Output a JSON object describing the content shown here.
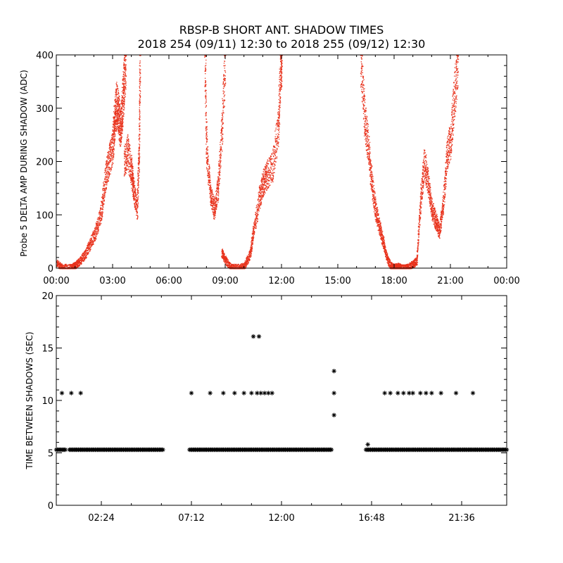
{
  "title": "RBSP-B SHORT ANT. SHADOW TIMES",
  "subtitle": "2018 254 (09/11) 12:30 to 2018 255 (09/12) 12:30",
  "colors": {
    "points_top": "#e8321c",
    "points_bottom": "#000000",
    "axes": "#000000",
    "background": "#ffffff"
  },
  "chart_data": [
    {
      "type": "scatter",
      "ylabel": "Probe 5 DELTA AMP DURING SHADOW (ADC)",
      "xlim_hours": [
        0,
        24
      ],
      "ylim": [
        0,
        400
      ],
      "x_ticks_hours": [
        0,
        3,
        6,
        9,
        12,
        15,
        18,
        21,
        24
      ],
      "x_tick_labels": [
        "00:00",
        "03:00",
        "06:00",
        "09:00",
        "12:00",
        "15:00",
        "18:00",
        "21:00",
        "00:00"
      ],
      "y_ticks": [
        0,
        100,
        200,
        300,
        400
      ],
      "y_tick_labels": [
        "0",
        "100",
        "200",
        "300",
        "400"
      ],
      "marker_color": "#e8321c",
      "series": [
        {
          "segments_hours_value": [
            [
              0.0,
              10
            ],
            [
              0.3,
              2
            ],
            [
              0.8,
              2
            ],
            [
              1.0,
              6
            ],
            [
              1.2,
              12
            ],
            [
              1.5,
              25
            ],
            [
              1.8,
              45
            ],
            [
              2.1,
              70
            ],
            [
              2.4,
              110
            ],
            [
              2.6,
              170
            ],
            [
              2.8,
              200
            ],
            [
              3.0,
              230
            ],
            [
              3.1,
              280
            ],
            [
              3.2,
              310
            ],
            [
              3.3,
              290
            ],
            [
              3.4,
              260
            ],
            [
              3.5,
              300
            ],
            [
              3.6,
              350
            ],
            [
              3.7,
              400
            ],
            [
              3.6,
              200
            ],
            [
              3.8,
              220
            ],
            [
              4.0,
              180
            ],
            [
              4.1,
              150
            ],
            [
              4.3,
              110
            ],
            [
              4.4,
              230
            ],
            [
              4.45,
              400
            ],
            [
              7.9,
              400
            ],
            [
              8.0,
              220
            ],
            [
              8.2,
              140
            ],
            [
              8.4,
              110
            ],
            [
              8.6,
              150
            ],
            [
              8.8,
              250
            ],
            [
              9.0,
              400
            ],
            [
              8.8,
              30
            ],
            [
              9.0,
              15
            ],
            [
              9.3,
              2
            ],
            [
              9.7,
              2
            ],
            [
              10.0,
              4
            ],
            [
              10.3,
              25
            ],
            [
              10.5,
              70
            ],
            [
              10.8,
              130
            ],
            [
              11.0,
              160
            ],
            [
              11.2,
              175
            ],
            [
              11.5,
              190
            ],
            [
              11.8,
              260
            ],
            [
              11.95,
              380
            ],
            [
              12.0,
              400
            ],
            [
              16.2,
              400
            ],
            [
              16.4,
              290
            ],
            [
              16.6,
              230
            ],
            [
              16.8,
              160
            ],
            [
              17.0,
              110
            ],
            [
              17.2,
              80
            ],
            [
              17.4,
              50
            ],
            [
              17.6,
              20
            ],
            [
              17.8,
              5
            ],
            [
              18.0,
              2
            ],
            [
              18.2,
              4
            ],
            [
              18.4,
              1
            ],
            [
              18.7,
              2
            ],
            [
              19.0,
              8
            ],
            [
              19.2,
              15
            ],
            [
              19.4,
              130
            ],
            [
              19.6,
              200
            ],
            [
              19.8,
              160
            ],
            [
              20.0,
              110
            ],
            [
              20.2,
              90
            ],
            [
              20.4,
              70
            ],
            [
              20.6,
              120
            ],
            [
              20.8,
              210
            ],
            [
              21.0,
              240
            ],
            [
              21.2,
              320
            ],
            [
              21.4,
              400
            ]
          ]
        }
      ]
    },
    {
      "type": "scatter",
      "ylabel": "TIME BETWEEN SHADOWS (SEC)",
      "xlim_hours": [
        0,
        24
      ],
      "ylim": [
        0,
        20
      ],
      "x_ticks_hours": [
        2.4,
        7.2,
        12.0,
        16.8,
        21.6
      ],
      "x_tick_labels": [
        "02:24",
        "07:12",
        "12:00",
        "16:48",
        "21:36"
      ],
      "y_ticks": [
        0,
        5,
        10,
        15,
        20
      ],
      "y_tick_labels": [
        "0",
        "5",
        "10",
        "15",
        "20"
      ],
      "marker": "asterisk",
      "marker_color": "#000000",
      "baseline_value": 5.3,
      "baseline_ranges_hours": [
        [
          0.0,
          0.5
        ],
        [
          0.7,
          5.7
        ],
        [
          7.1,
          14.7
        ],
        [
          16.5,
          24.0
        ]
      ],
      "outliers_hours_value": [
        [
          0.3,
          10.7
        ],
        [
          0.8,
          10.7
        ],
        [
          1.3,
          10.7
        ],
        [
          7.2,
          10.7
        ],
        [
          8.2,
          10.7
        ],
        [
          8.9,
          10.7
        ],
        [
          9.5,
          10.7
        ],
        [
          10.0,
          10.7
        ],
        [
          10.4,
          10.7
        ],
        [
          10.7,
          10.7
        ],
        [
          10.9,
          10.7
        ],
        [
          11.1,
          10.7
        ],
        [
          11.3,
          10.7
        ],
        [
          11.5,
          10.7
        ],
        [
          10.5,
          16.1
        ],
        [
          10.8,
          16.1
        ],
        [
          14.8,
          12.8
        ],
        [
          14.8,
          10.7
        ],
        [
          14.8,
          8.6
        ],
        [
          16.6,
          5.8
        ],
        [
          17.5,
          10.7
        ],
        [
          17.8,
          10.7
        ],
        [
          18.2,
          10.7
        ],
        [
          18.5,
          10.7
        ],
        [
          18.8,
          10.7
        ],
        [
          19.0,
          10.7
        ],
        [
          19.4,
          10.7
        ],
        [
          19.7,
          10.7
        ],
        [
          20.0,
          10.7
        ],
        [
          20.5,
          10.7
        ],
        [
          21.3,
          10.7
        ],
        [
          22.2,
          10.7
        ]
      ]
    }
  ]
}
